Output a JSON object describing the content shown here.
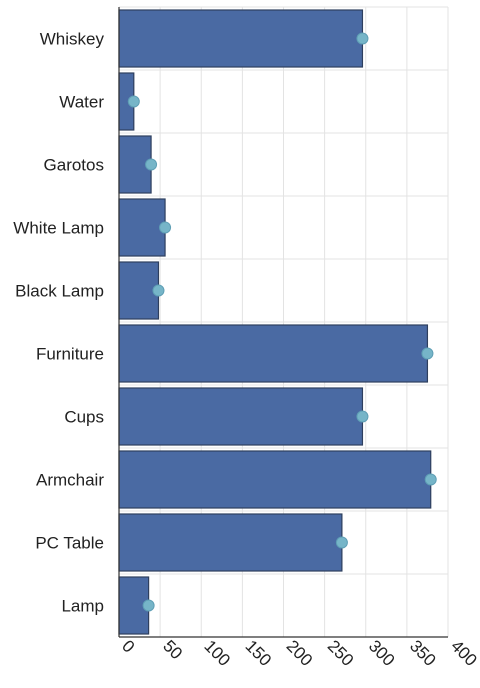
{
  "chart_data": {
    "type": "bar",
    "orientation": "horizontal",
    "categories": [
      "Whiskey",
      "Water",
      "Garotos",
      "White Lamp",
      "Black Lamp",
      "Furniture",
      "Cups",
      "Armchair",
      "PC Table",
      "Lamp"
    ],
    "series": [
      {
        "values": [
          296,
          18,
          39,
          56,
          48,
          375,
          296,
          379,
          271,
          36
        ]
      }
    ],
    "markers": [
      296,
      18,
      39,
      56,
      48,
      375,
      296,
      379,
      271,
      36
    ],
    "xticks": [
      0,
      50,
      100,
      150,
      200,
      250,
      300,
      350,
      400
    ],
    "xlim": [
      0,
      400
    ],
    "title": "",
    "xlabel": "",
    "ylabel": "",
    "grid": true,
    "colors": {
      "bar": "#4a6aa3",
      "marker": "#76b5c8"
    }
  }
}
